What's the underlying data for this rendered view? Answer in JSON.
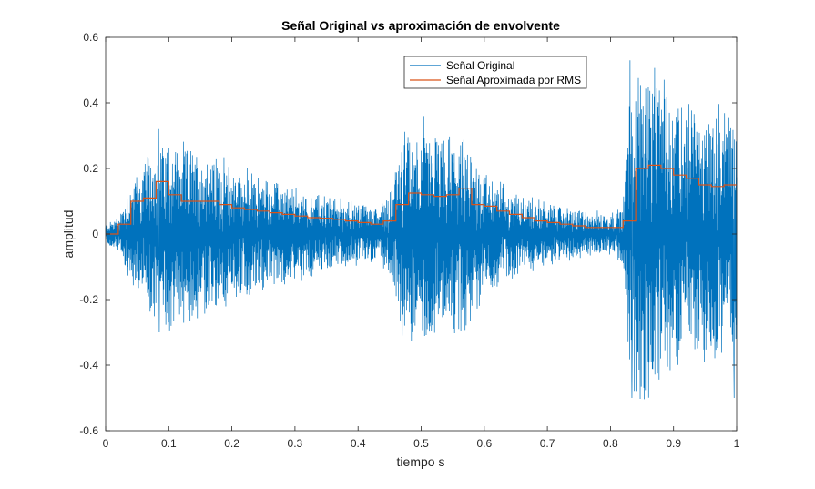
{
  "chart_data": {
    "type": "line",
    "title": "Señal Original vs aproximación de envolvente",
    "xlabel": "tiempo s",
    "ylabel": "amplitud",
    "xlim": [
      0,
      1
    ],
    "ylim": [
      -0.6,
      0.6
    ],
    "xticks": [
      0,
      0.1,
      0.2,
      0.3,
      0.4,
      0.5,
      0.6,
      0.7,
      0.8,
      0.9,
      1
    ],
    "xtick_labels": [
      "0",
      "0.1",
      "0.2",
      "0.3",
      "0.4",
      "0.5",
      "0.6",
      "0.7",
      "0.8",
      "0.9",
      "1"
    ],
    "yticks": [
      -0.6,
      -0.4,
      -0.2,
      0,
      0.2,
      0.4,
      0.6
    ],
    "ytick_labels": [
      "-0.6",
      "-0.4",
      "-0.2",
      "0",
      "0.2",
      "0.4",
      "0.6"
    ],
    "grid": false,
    "legend_position": "top-right",
    "series": [
      {
        "name": "Señal Original",
        "color": "#0072BD",
        "style": "oscillating",
        "envelope_t": [
          0,
          0.02,
          0.04,
          0.06,
          0.08,
          0.1,
          0.12,
          0.15,
          0.2,
          0.25,
          0.3,
          0.35,
          0.4,
          0.43,
          0.45,
          0.47,
          0.5,
          0.55,
          0.57,
          0.6,
          0.65,
          0.7,
          0.75,
          0.8,
          0.82,
          0.83,
          0.85,
          0.9,
          0.95,
          1.0
        ],
        "envelope_amp": [
          0.03,
          0.05,
          0.15,
          0.2,
          0.26,
          0.28,
          0.25,
          0.24,
          0.2,
          0.16,
          0.13,
          0.11,
          0.09,
          0.08,
          0.12,
          0.28,
          0.3,
          0.27,
          0.26,
          0.18,
          0.12,
          0.09,
          0.07,
          0.06,
          0.08,
          0.45,
          0.48,
          0.4,
          0.35,
          0.38
        ],
        "extrema": [
          {
            "x": 0.084,
            "y": 0.32
          },
          {
            "x": 0.085,
            "y": -0.3
          },
          {
            "x": 0.504,
            "y": 0.36
          },
          {
            "x": 0.47,
            "y": -0.31
          },
          {
            "x": 0.831,
            "y": 0.53
          },
          {
            "x": 0.834,
            "y": -0.5
          },
          {
            "x": 0.996,
            "y": -0.5
          },
          {
            "x": 0.86,
            "y": 0.45
          }
        ]
      },
      {
        "name": "Señal Aproximada por RMS",
        "color": "#D95319",
        "style": "step",
        "x": [
          0,
          0.02,
          0.04,
          0.06,
          0.08,
          0.1,
          0.12,
          0.14,
          0.16,
          0.18,
          0.2,
          0.22,
          0.24,
          0.26,
          0.28,
          0.3,
          0.32,
          0.34,
          0.36,
          0.38,
          0.4,
          0.42,
          0.44,
          0.46,
          0.48,
          0.5,
          0.52,
          0.54,
          0.56,
          0.58,
          0.6,
          0.62,
          0.64,
          0.66,
          0.68,
          0.7,
          0.72,
          0.74,
          0.76,
          0.78,
          0.8,
          0.82,
          0.84,
          0.86,
          0.88,
          0.9,
          0.92,
          0.94,
          0.96,
          0.98
        ],
        "y": [
          0.0,
          0.03,
          0.1,
          0.11,
          0.16,
          0.12,
          0.1,
          0.1,
          0.1,
          0.09,
          0.08,
          0.075,
          0.07,
          0.065,
          0.06,
          0.055,
          0.05,
          0.048,
          0.045,
          0.04,
          0.035,
          0.03,
          0.04,
          0.09,
          0.125,
          0.12,
          0.115,
          0.12,
          0.14,
          0.09,
          0.085,
          0.07,
          0.06,
          0.05,
          0.04,
          0.035,
          0.03,
          0.025,
          0.02,
          0.02,
          0.02,
          0.04,
          0.2,
          0.21,
          0.2,
          0.18,
          0.17,
          0.15,
          0.145,
          0.15
        ]
      }
    ]
  }
}
